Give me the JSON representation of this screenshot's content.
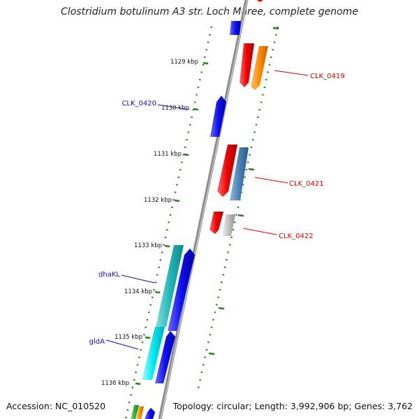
{
  "title": "Clostridium botulinum A3 str. Loch Maree, complete genome",
  "footer": {
    "accession": "Accession: NC_010520",
    "summary": "Topology: circular; Length: 3,992,906 bp; Genes: 3,762"
  },
  "ticks": [
    "1129 kbp",
    "1130 kbp",
    "1131 kbp",
    "1132 kbp",
    "1133 kbp",
    "1134 kbp",
    "1135 kbp",
    "1136 kbp"
  ],
  "gene_labels": {
    "clk_0419": "CLK_0419",
    "clk_0420": "CLK_0420",
    "clk_0421": "CLK_0421",
    "clk_0422": "CLK_0422",
    "dhakl": "dhaKL",
    "glda": "gldA"
  },
  "colors": {
    "backbone": "#8a8a8a",
    "tick": "#2e7d1e",
    "label_red": "#e00000",
    "label_blue": "#1010c0",
    "cds_red": "#f00000",
    "cds_blue": "#1010ee",
    "cds_orange": "#ff8c00",
    "cds_steel": "#4a82b4",
    "cds_gray": "#c0c0c0",
    "cds_cyan_dark": "#20b8b8",
    "cds_cyan": "#00e8f0",
    "cds_green": "#30b030"
  }
}
